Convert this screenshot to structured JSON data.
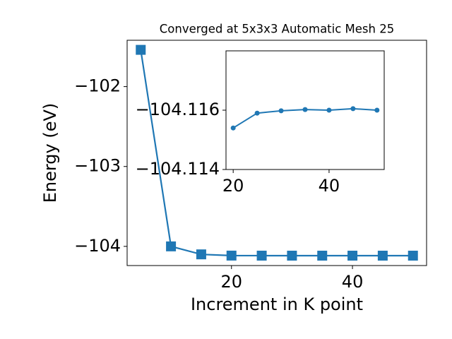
{
  "chart_data": [
    {
      "type": "line",
      "title": "Converged at 5x3x3 Automatic Mesh 25",
      "x_label": "Increment in K point",
      "y_label": "Energy (eV)",
      "x": [
        5,
        10,
        15,
        20,
        25,
        30,
        35,
        40,
        45,
        50
      ],
      "series": [
        {
          "color": "#1f77b4",
          "marker": "square",
          "values": [
            -101.54,
            -104.0,
            -104.1,
            -104.1154,
            -104.1159,
            -104.11598,
            -104.11602,
            -104.116,
            -104.11605,
            -104.116
          ]
        }
      ],
      "xlim": [
        2.75,
        52.25
      ],
      "xticks": [
        20,
        40
      ],
      "ylim": [
        -104.24,
        -101.42
      ],
      "yticks": [
        {
          "value": -104,
          "label": "−104"
        },
        {
          "value": -103,
          "label": "−103"
        },
        {
          "value": -102,
          "label": "−102"
        }
      ]
    },
    {
      "type": "line",
      "x": [
        20,
        25,
        30,
        35,
        40,
        45,
        50
      ],
      "series": [
        {
          "color": "#1f77b4",
          "marker": "circle",
          "values": [
            -104.1154,
            -104.1159,
            -104.11598,
            -104.11602,
            -104.116,
            -104.11605,
            -104.116
          ]
        }
      ],
      "xlim": [
        18.5,
        51.5
      ],
      "xticks": [
        20,
        40
      ],
      "ylim": [
        -104.114,
        -104.118
      ],
      "yticks": [
        {
          "value": -104.116,
          "label": "−104.116"
        },
        {
          "value": -104.114,
          "label": "−104.114"
        }
      ]
    }
  ]
}
